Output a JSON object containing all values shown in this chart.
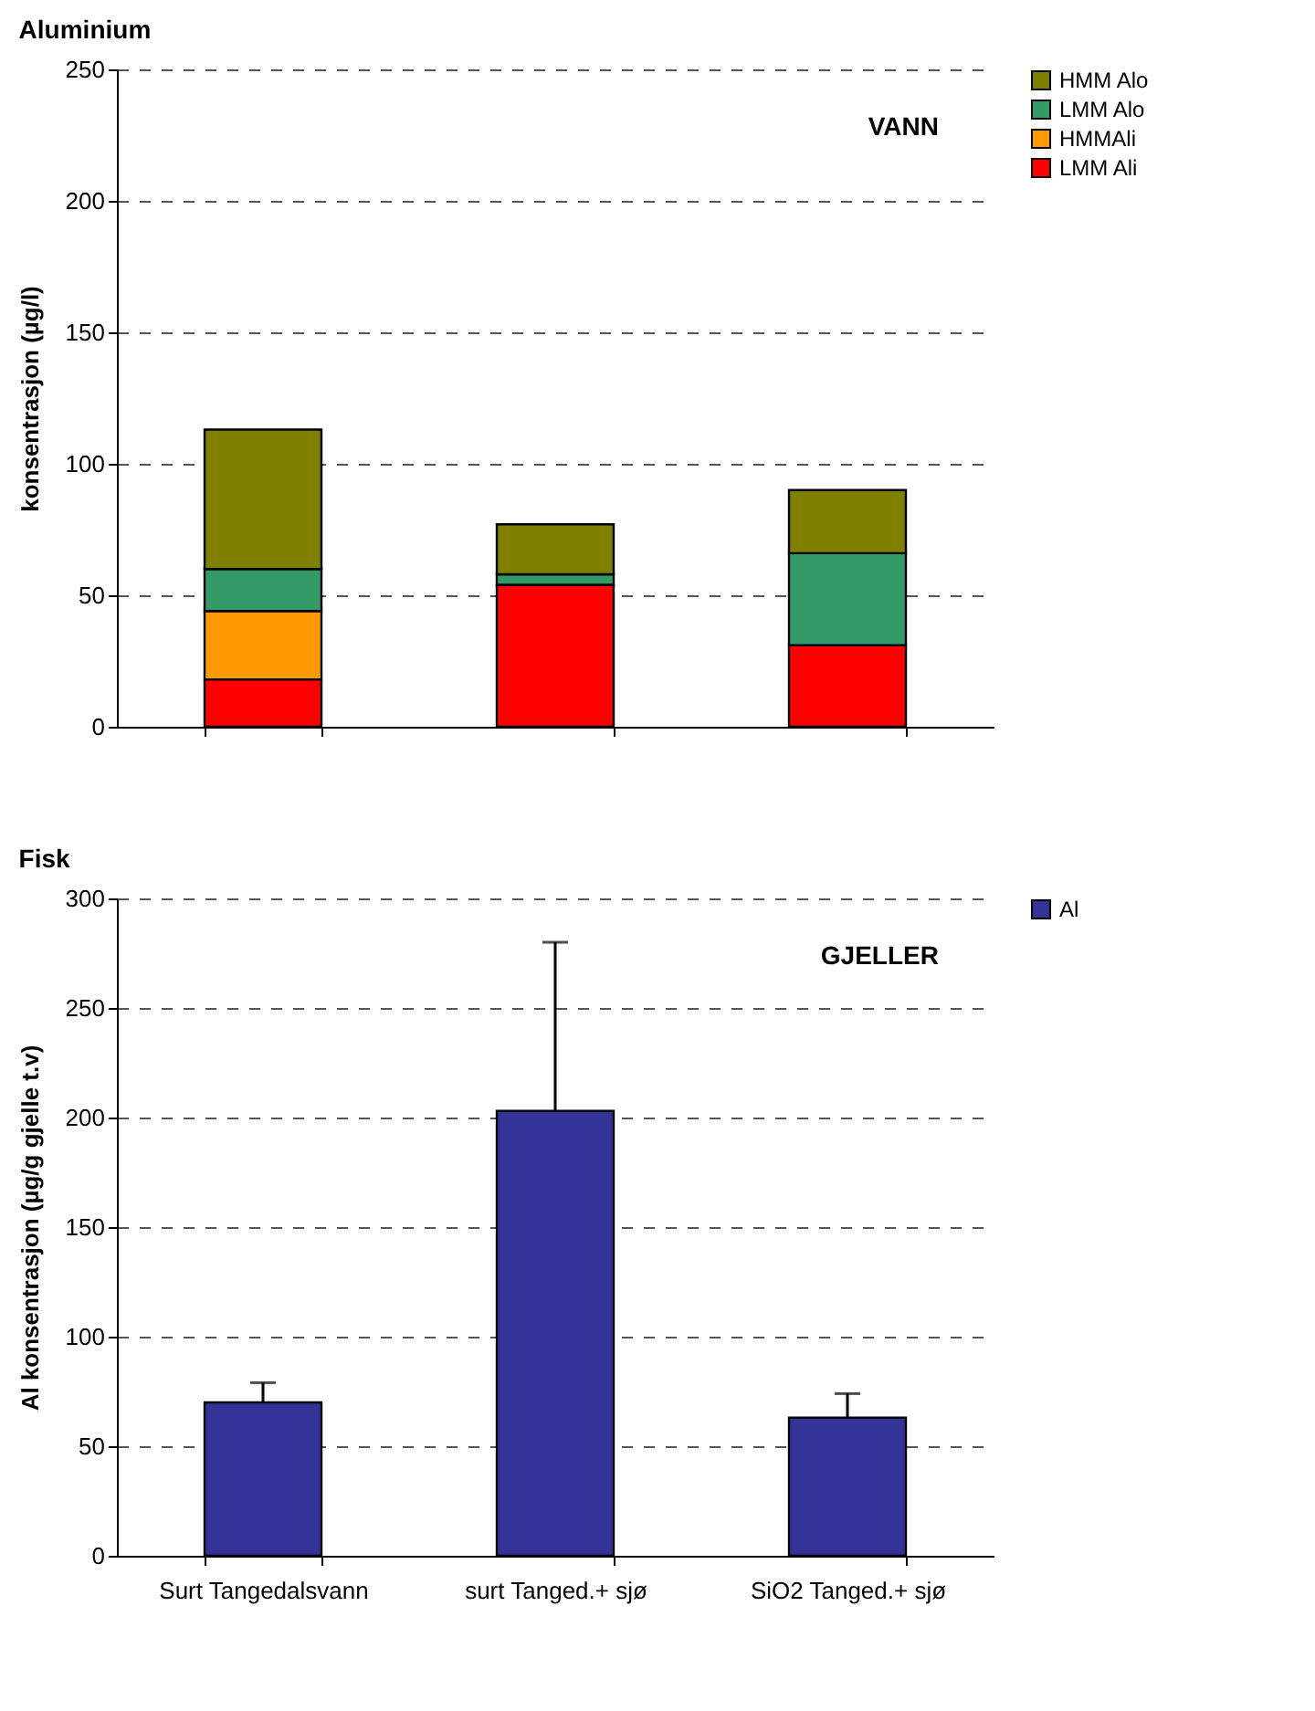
{
  "chart_data": [
    {
      "type": "bar",
      "title": "Aluminium",
      "ylabel": "konsentrasjon (µg/l)",
      "annotations": [
        "VANN"
      ],
      "categories": [
        null,
        null,
        null
      ],
      "stacked": true,
      "ylim": [
        0,
        250
      ],
      "yticks": [
        0,
        50,
        100,
        150,
        200,
        250
      ],
      "grid": "y",
      "legend": "right",
      "series": [
        {
          "name": "LMM Ali",
          "color": "#ff0000",
          "values": [
            18,
            54,
            31
          ]
        },
        {
          "name": "HMMAli",
          "color": "#ff9900",
          "values": [
            26,
            0,
            0
          ]
        },
        {
          "name": "LMM Alo",
          "color": "#339966",
          "values": [
            16,
            4,
            35
          ]
        },
        {
          "name": "HMM Alo",
          "color": "#808000",
          "values": [
            53,
            19,
            24
          ]
        }
      ]
    },
    {
      "type": "bar",
      "title": "Fisk",
      "ylabel": "Al konsentrasjon (µg/g gjelle t.v)",
      "annotations": [
        "GJELLER"
      ],
      "categories": [
        "Surt Tangedalsvann",
        "surt Tanged.+ sjø",
        "SiO2 Tanged.+ sjø"
      ],
      "ylim": [
        0,
        300
      ],
      "yticks": [
        0,
        50,
        100,
        150,
        200,
        250,
        300
      ],
      "grid": "y",
      "legend": "right",
      "series": [
        {
          "name": "Al",
          "color": "#333399",
          "values": [
            70,
            203,
            63
          ],
          "errors": [
            [
              70,
              79
            ],
            [
              203,
              280
            ],
            [
              63,
              74
            ]
          ]
        }
      ]
    }
  ]
}
